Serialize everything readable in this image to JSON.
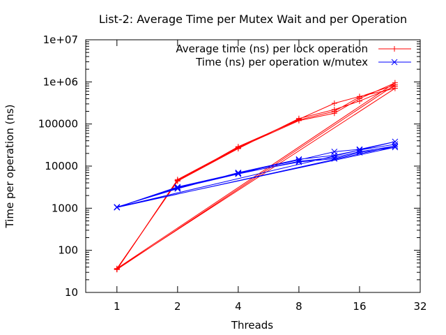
{
  "chart_data": {
    "type": "line",
    "title": "List-2: Average Time per Mutex Wait and per Operation",
    "xlabel": "Threads",
    "ylabel": "Time per operation (ns)",
    "x_scale": "log2",
    "y_scale": "log10",
    "xlim": [
      0.7,
      32
    ],
    "ylim": [
      10,
      10000000
    ],
    "x_ticks": [
      1,
      2,
      4,
      8,
      16,
      32
    ],
    "x_tick_labels": [
      "1",
      "2",
      "4",
      "8",
      "16",
      "32"
    ],
    "y_ticks": [
      10,
      100,
      1000,
      10000,
      100000,
      1000000,
      10000000
    ],
    "y_tick_labels": [
      "10",
      "100",
      "1000",
      "10000",
      "100000",
      "1e+06",
      "1e+07"
    ],
    "grid": false,
    "legend_position": "top-right",
    "series": [
      {
        "name": "Average time (ns) per lock operation",
        "color": "#ff0000",
        "marker": "plus",
        "x": [
          1,
          2,
          4,
          8,
          12,
          16,
          24,
          1,
          2,
          4,
          8,
          12,
          16,
          24,
          1,
          2,
          4,
          8,
          12,
          16,
          24,
          1,
          2,
          4,
          8,
          12,
          16,
          24
        ],
        "y": [
          35,
          4800,
          28000,
          130000,
          310000,
          450000,
          700000,
          36,
          4500,
          29000,
          125000,
          200000,
          440000,
          850000,
          35,
          4600,
          27000,
          120000,
          180000,
          400000,
          950000,
          37,
          4400,
          26000,
          135000,
          220000,
          350000,
          780000
        ]
      },
      {
        "name": "Time (ns) per operation w/mutex",
        "color": "#0000ff",
        "marker": "x",
        "x": [
          1,
          2,
          4,
          8,
          12,
          16,
          24,
          1,
          2,
          4,
          8,
          12,
          16,
          24,
          1,
          2,
          4,
          8,
          12,
          16,
          24,
          1,
          2,
          4,
          8,
          12,
          16,
          24
        ],
        "y": [
          1050,
          3200,
          6800,
          14000,
          22000,
          25000,
          38000,
          1060,
          3000,
          6500,
          13000,
          16000,
          22000,
          30000,
          1040,
          3100,
          6700,
          12500,
          15000,
          21000,
          28000,
          1070,
          2900,
          7000,
          14500,
          18000,
          24000,
          33000
        ]
      }
    ]
  }
}
